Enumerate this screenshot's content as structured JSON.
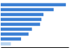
{
  "chart_data": {
    "type": "bar",
    "orientation": "horizontal",
    "categories": [
      null,
      null,
      null,
      null,
      null,
      null,
      null,
      null,
      null
    ],
    "values": [
      96,
      78,
      63,
      60,
      58,
      46,
      41,
      30,
      15
    ],
    "colors": [
      "#3a7fd4",
      "#3a7fd4",
      "#3a7fd4",
      "#3a7fd4",
      "#3a7fd4",
      "#3a7fd4",
      "#3a7fd4",
      "#3a7fd4",
      "#b8d4f0"
    ],
    "xlim": [
      0,
      100
    ],
    "tick_labels": false,
    "grid": false
  }
}
